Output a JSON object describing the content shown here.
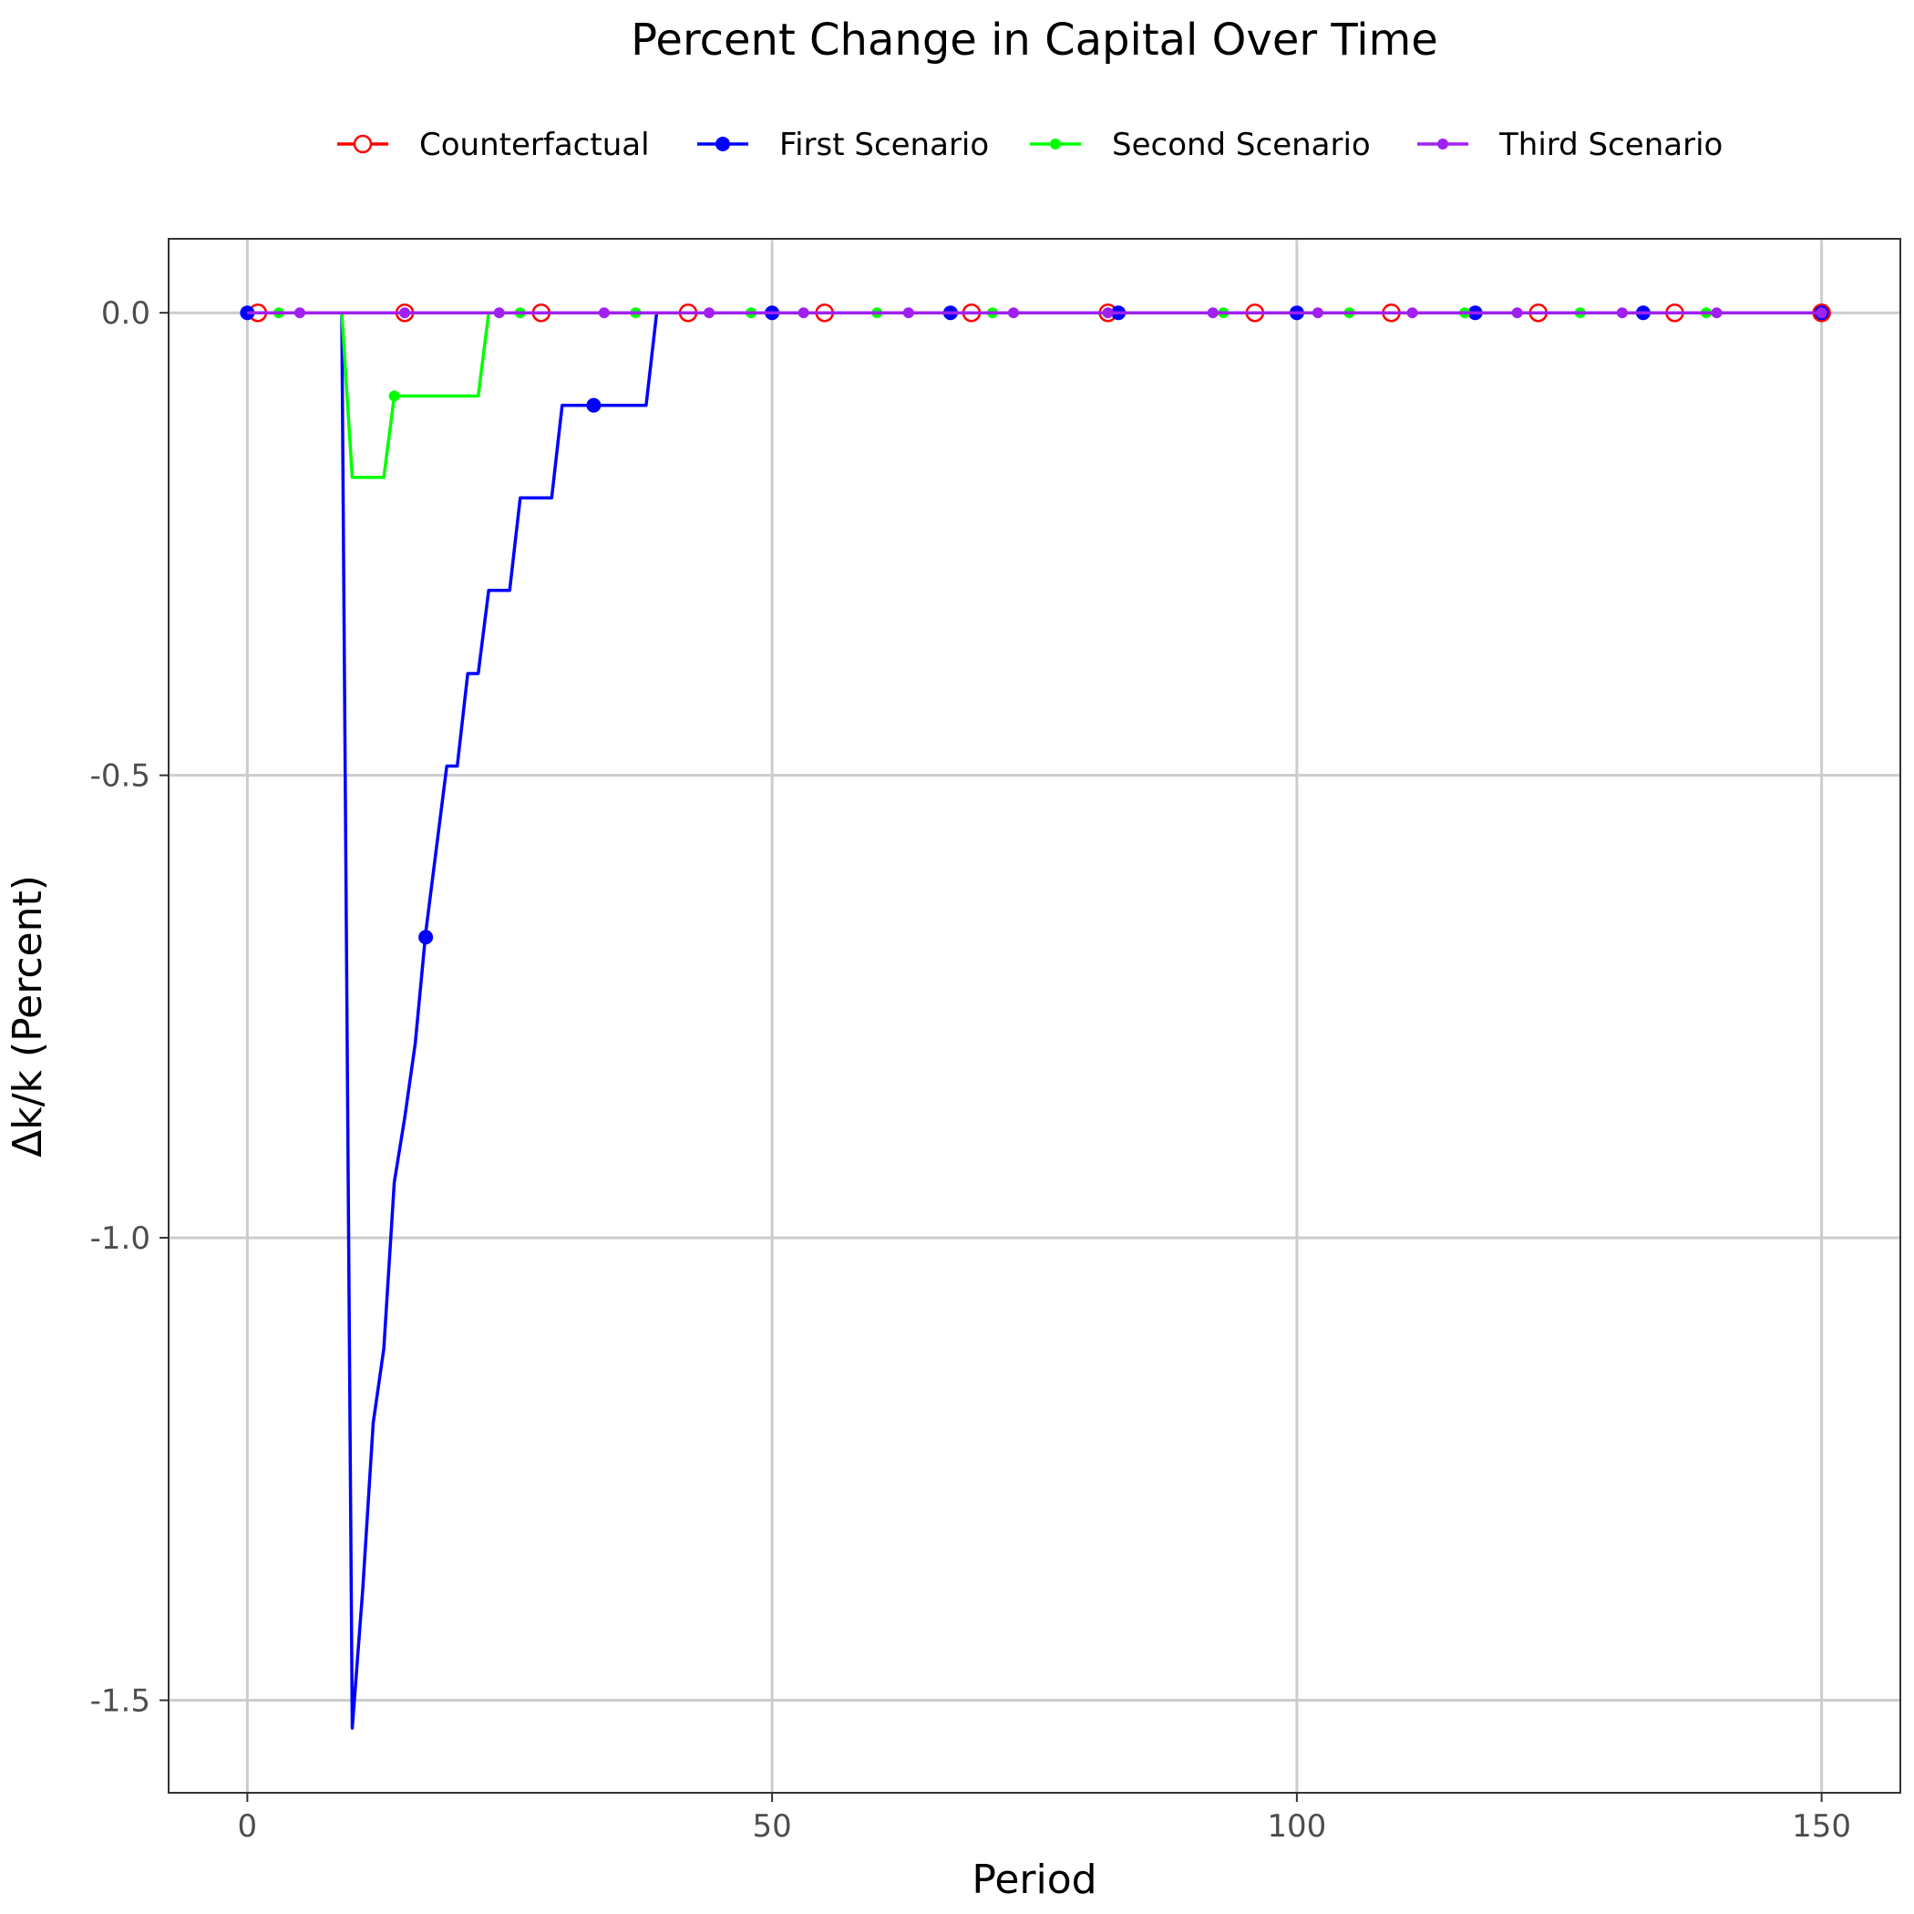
{
  "chart_data": {
    "type": "line",
    "title": "Percent Change in Capital Over Time",
    "xlabel": "Period",
    "ylabel": "Δk/k (Percent)",
    "xlim": [
      -7.5,
      157.5
    ],
    "ylim": [
      -1.6,
      0.08
    ],
    "x_ticks": [
      0,
      50,
      100,
      150
    ],
    "x_tick_labels": [
      "0",
      "50",
      "100",
      "150"
    ],
    "y_ticks": [
      0.0,
      -0.5,
      -1.0,
      -1.5
    ],
    "y_tick_labels": [
      "0.0",
      "-0.5",
      "-1.0",
      "-1.5"
    ],
    "grid": true,
    "legend_position": "top",
    "series": [
      {
        "name": "Counterfactual",
        "color": "#ff0000",
        "marker": "open-circle",
        "line_points": [
          [
            0,
            0
          ],
          [
            150,
            0
          ]
        ],
        "marker_points": [
          [
            1,
            0
          ],
          [
            15,
            0
          ],
          [
            28,
            0
          ],
          [
            42,
            0
          ],
          [
            55,
            0
          ],
          [
            69,
            0
          ],
          [
            82,
            0
          ],
          [
            96,
            0
          ],
          [
            109,
            0
          ],
          [
            123,
            0
          ],
          [
            136,
            0
          ],
          [
            150,
            0
          ]
        ]
      },
      {
        "name": "First Scenario",
        "color": "#0000ff",
        "marker": "filled-circle",
        "line_points": [
          [
            0,
            0
          ],
          [
            9,
            0
          ],
          [
            10,
            -1.53
          ],
          [
            11,
            -1.38
          ],
          [
            12,
            -1.2
          ],
          [
            13,
            -1.12
          ],
          [
            14,
            -0.94
          ],
          [
            15,
            -0.87
          ],
          [
            16,
            -0.79
          ],
          [
            17,
            -0.67
          ],
          [
            19,
            -0.49
          ],
          [
            20,
            -0.49
          ],
          [
            21,
            -0.39
          ],
          [
            22,
            -0.39
          ],
          [
            23,
            -0.3
          ],
          [
            25,
            -0.3
          ],
          [
            26,
            -0.2
          ],
          [
            29,
            -0.2
          ],
          [
            30,
            -0.1
          ],
          [
            38,
            -0.1
          ],
          [
            39,
            0
          ],
          [
            150,
            0
          ]
        ],
        "marker_points": [
          [
            0,
            0
          ],
          [
            17,
            -0.675
          ],
          [
            33,
            -0.1
          ],
          [
            50,
            0
          ],
          [
            67,
            0
          ],
          [
            83,
            0
          ],
          [
            100,
            0
          ],
          [
            117,
            0
          ],
          [
            133,
            0
          ],
          [
            150,
            0
          ]
        ]
      },
      {
        "name": "Second Scenario",
        "color": "#00ff00",
        "marker": "small-circle",
        "line_points": [
          [
            0,
            0
          ],
          [
            9,
            0
          ],
          [
            10,
            -0.178
          ],
          [
            13,
            -0.178
          ],
          [
            14,
            -0.09
          ],
          [
            22,
            -0.09
          ],
          [
            23,
            0
          ],
          [
            150,
            0
          ]
        ],
        "marker_points": [
          [
            3,
            0
          ],
          [
            14,
            -0.09
          ],
          [
            26,
            0
          ],
          [
            37,
            0
          ],
          [
            48,
            0
          ],
          [
            60,
            0
          ],
          [
            71,
            0
          ],
          [
            82,
            0
          ],
          [
            93,
            0
          ],
          [
            105,
            0
          ],
          [
            116,
            0
          ],
          [
            127,
            0
          ],
          [
            139,
            0
          ],
          [
            150,
            0
          ]
        ]
      },
      {
        "name": "Third Scenario",
        "color": "#a020f0",
        "marker": "small-circle",
        "line_points": [
          [
            0,
            0
          ],
          [
            150,
            0
          ]
        ],
        "marker_points": [
          [
            5,
            0
          ],
          [
            15,
            0
          ],
          [
            24,
            0
          ],
          [
            34,
            0
          ],
          [
            44,
            0
          ],
          [
            53,
            0
          ],
          [
            63,
            0
          ],
          [
            73,
            0
          ],
          [
            82,
            0
          ],
          [
            92,
            0
          ],
          [
            102,
            0
          ],
          [
            111,
            0
          ],
          [
            121,
            0
          ],
          [
            131,
            0
          ],
          [
            140,
            0
          ],
          [
            150,
            0
          ]
        ]
      }
    ]
  }
}
